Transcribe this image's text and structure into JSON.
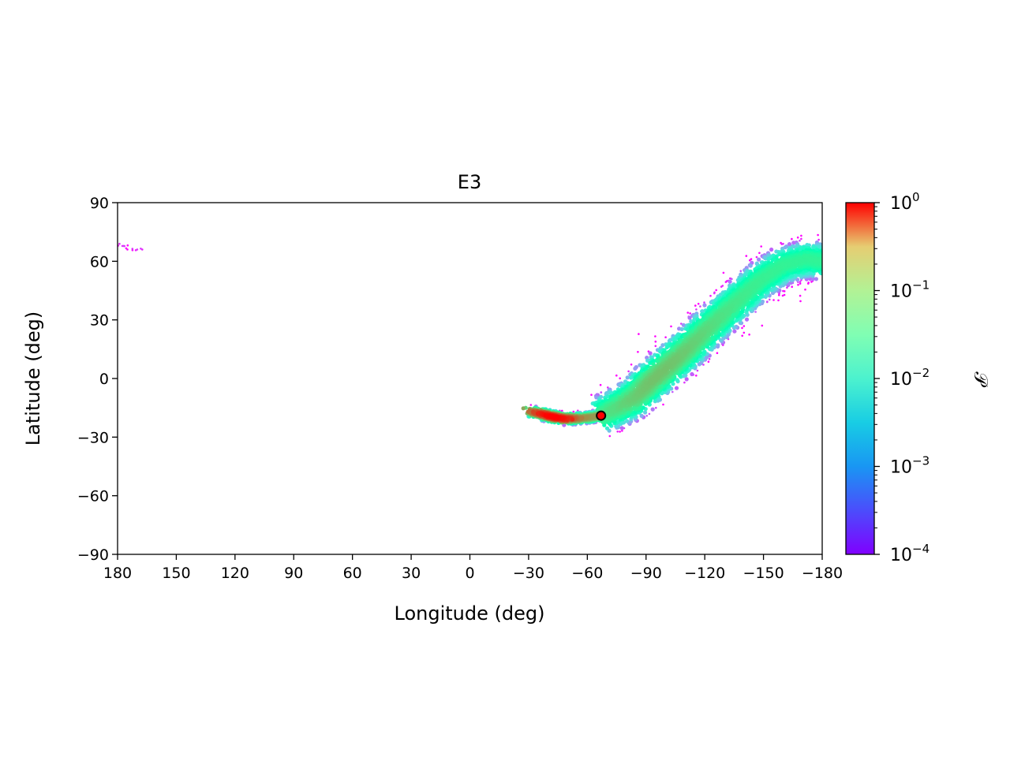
{
  "chart_data": {
    "type": "heatmap",
    "title": "E3",
    "xlabel": "Longitude (deg)",
    "ylabel": "Latitude (deg)",
    "xlim": [
      180,
      -180
    ],
    "ylim": [
      -90,
      90
    ],
    "x_ticks": [
      "180",
      "150",
      "120",
      "90",
      "60",
      "30",
      "0",
      "−30",
      "−60",
      "−90",
      "−120",
      "−150",
      "−180"
    ],
    "x_tick_values": [
      180,
      150,
      120,
      90,
      60,
      30,
      0,
      -30,
      -60,
      -90,
      -120,
      -150,
      -180
    ],
    "y_ticks": [
      "90",
      "60",
      "30",
      "0",
      "−30",
      "−60",
      "−90"
    ],
    "y_tick_values": [
      90,
      60,
      30,
      0,
      -30,
      -60,
      -90
    ],
    "colorbar": {
      "label": "𝒫",
      "scale": "log",
      "range": [
        0.0001,
        1
      ],
      "colormap": "rainbow",
      "tick_values": [
        0.0001,
        0.001,
        0.01,
        0.1,
        1
      ],
      "tick_bases": [
        "10",
        "10",
        "10",
        "10",
        "10"
      ],
      "tick_exponents": [
        "−4",
        "−3",
        "−2",
        "−1",
        "0"
      ]
    },
    "marker": {
      "lon": -67,
      "lat": -19,
      "color": "#ff0000"
    },
    "regions": [
      {
        "name": "western-arc",
        "centerline": [
          [
            -31,
            -17
          ],
          [
            -36,
            -18
          ],
          [
            -42,
            -19.5
          ],
          [
            -48,
            -20.5
          ],
          [
            -54,
            -20.5
          ],
          [
            -60,
            -20
          ],
          [
            -67,
            -19
          ]
        ],
        "halfwidth_lat": 2.2,
        "peak": 1.0
      },
      {
        "name": "main-band",
        "centerline": [
          [
            -67,
            -19
          ],
          [
            -75,
            -15
          ],
          [
            -84,
            -10
          ],
          [
            -92,
            -2
          ],
          [
            -100,
            5
          ],
          [
            -110,
            14
          ],
          [
            -122,
            26
          ],
          [
            -135,
            38
          ],
          [
            -148,
            50
          ],
          [
            -160,
            58
          ],
          [
            -172,
            61
          ],
          [
            -180,
            60
          ]
        ],
        "halfwidth_lat": 8.5,
        "peak": 0.08
      },
      {
        "name": "wrap-tail",
        "centerline": [
          [
            180,
            69
          ],
          [
            176,
            67.5
          ],
          [
            172,
            66
          ],
          [
            166,
            66.5
          ]
        ],
        "halfwidth_lat": 1.2,
        "peak": 0.0002
      }
    ]
  }
}
